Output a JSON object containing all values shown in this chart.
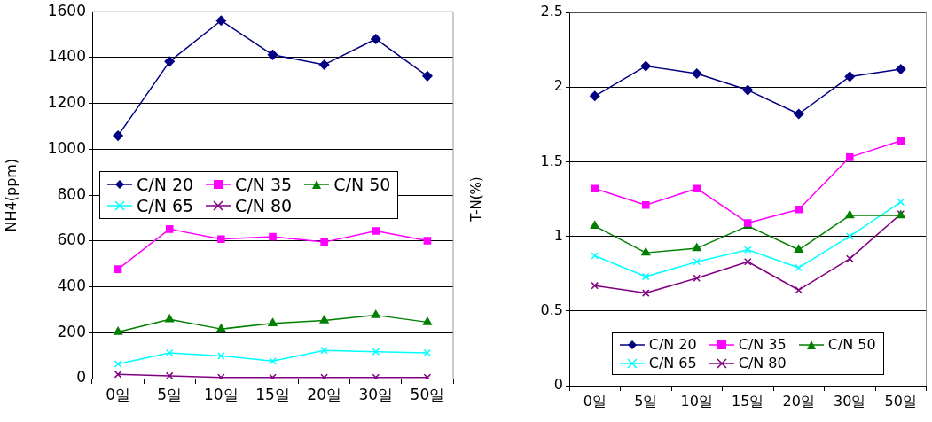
{
  "chart_data": [
    {
      "type": "line",
      "ylabel": "NH4(ppm)",
      "categories": [
        "0일",
        "5일",
        "10일",
        "15일",
        "20일",
        "30일",
        "50일"
      ],
      "ylim": [
        0,
        1600
      ],
      "yticks": [
        0,
        200,
        400,
        600,
        800,
        1000,
        1200,
        1400,
        1600
      ],
      "grid": "y",
      "legend": "left",
      "series": [
        {
          "name": "C/N 20",
          "color": "#000080",
          "marker": "diamond",
          "values": [
            1059,
            1383,
            1561,
            1412,
            1369,
            1481,
            1319
          ]
        },
        {
          "name": "C/N 35",
          "color": "#ff00ff",
          "marker": "square",
          "values": [
            477,
            652,
            608,
            619,
            595,
            644,
            601
          ]
        },
        {
          "name": "C/N 50",
          "color": "#008000",
          "marker": "triangle",
          "values": [
            203,
            258,
            216,
            241,
            253,
            276,
            246
          ]
        },
        {
          "name": "C/N 65",
          "color": "#00ffff",
          "marker": "cross",
          "values": [
            64,
            112,
            99,
            76,
            123,
            117,
            112
          ]
        },
        {
          "name": "C/N 80",
          "color": "#800080",
          "marker": "cross",
          "values": [
            18,
            12,
            5,
            5,
            5,
            5,
            5
          ]
        }
      ]
    },
    {
      "type": "line",
      "ylabel": "T-N(%)",
      "categories": [
        "0일",
        "5일",
        "10일",
        "15일",
        "20일",
        "30일",
        "50일"
      ],
      "ylim": [
        0,
        2.5
      ],
      "yticks": [
        0,
        0.5,
        1,
        1.5,
        2,
        2.5
      ],
      "grid": "y",
      "legend": "bottom",
      "series": [
        {
          "name": "C/N 20",
          "color": "#000080",
          "marker": "diamond",
          "values": [
            1.94,
            2.14,
            2.09,
            1.98,
            1.82,
            2.07,
            2.12
          ]
        },
        {
          "name": "C/N 35",
          "color": "#ff00ff",
          "marker": "square",
          "values": [
            1.32,
            1.21,
            1.32,
            1.09,
            1.18,
            1.53,
            1.64
          ]
        },
        {
          "name": "C/N 50",
          "color": "#008000",
          "marker": "triangle",
          "values": [
            1.07,
            0.89,
            0.92,
            1.07,
            0.91,
            1.14,
            1.14
          ]
        },
        {
          "name": "C/N 65",
          "color": "#00ffff",
          "marker": "cross",
          "values": [
            0.87,
            0.73,
            0.83,
            0.91,
            0.79,
            1.0,
            1.23
          ]
        },
        {
          "name": "C/N 80",
          "color": "#800080",
          "marker": "cross",
          "values": [
            0.67,
            0.62,
            0.72,
            0.83,
            0.64,
            0.85,
            1.15
          ]
        }
      ]
    }
  ]
}
